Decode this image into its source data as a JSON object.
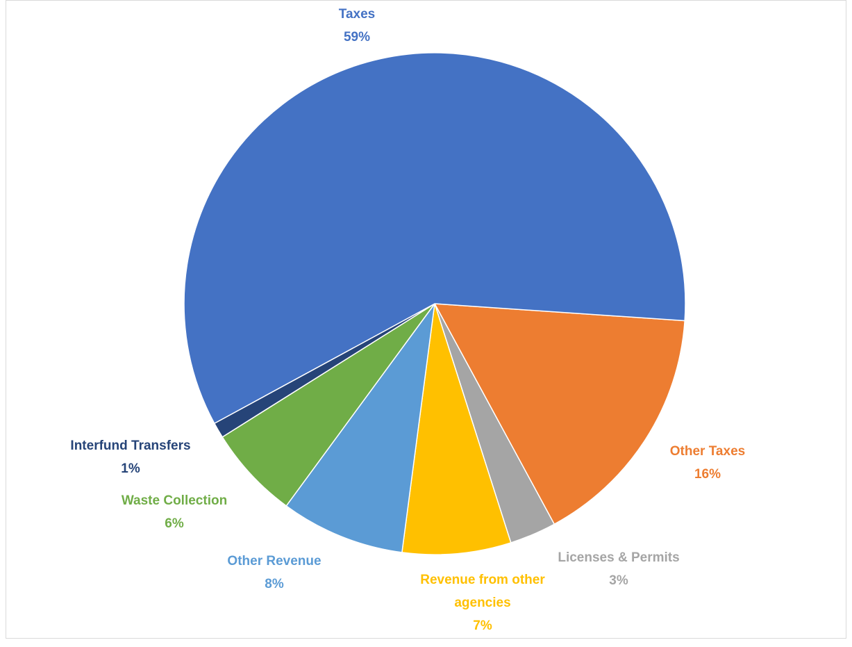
{
  "chart_data": {
    "type": "pie",
    "title": "",
    "slices": [
      {
        "label": "Taxes",
        "percent_label": "59%",
        "value": 59,
        "color": "#4472C4"
      },
      {
        "label": "Other Taxes",
        "percent_label": "16%",
        "value": 16,
        "color": "#ED7D31"
      },
      {
        "label": "Licenses & Permits",
        "percent_label": "3%",
        "value": 3,
        "color": "#A5A5A5"
      },
      {
        "label": "Revenue from other agencies",
        "percent_label": "7%",
        "value": 7,
        "color": "#FFC000"
      },
      {
        "label": "Other Revenue",
        "percent_label": "8%",
        "value": 8,
        "color": "#5B9BD5"
      },
      {
        "label": "Waste Collection",
        "percent_label": "6%",
        "value": 6,
        "color": "#70AD47"
      },
      {
        "label": "Interfund Transfers",
        "percent_label": "1%",
        "value": 1,
        "color": "#264478"
      }
    ],
    "labels_position": "outside",
    "legend": "none"
  }
}
